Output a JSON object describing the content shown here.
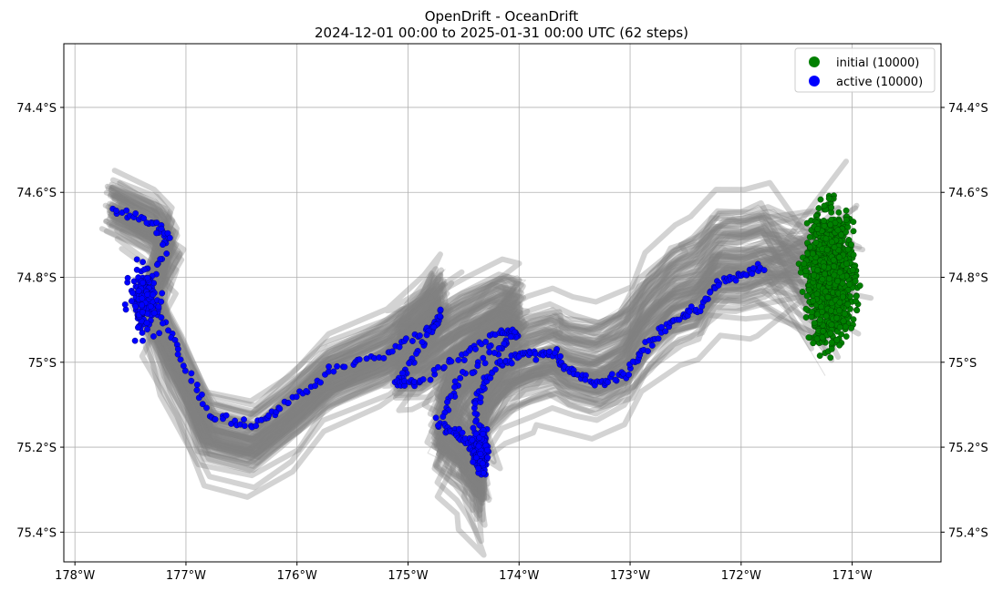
{
  "chart_data": {
    "type": "scatter",
    "title": "OpenDrift - OceanDrift",
    "subtitle": "2024-12-01 00:00 to 2025-01-31 00:00 UTC (62 steps)",
    "xlabel": "",
    "ylabel": "",
    "x_ticks": [
      {
        "value": -178,
        "label": "178°W"
      },
      {
        "value": -177,
        "label": "177°W"
      },
      {
        "value": -176,
        "label": "176°W"
      },
      {
        "value": -175,
        "label": "175°W"
      },
      {
        "value": -174,
        "label": "174°W"
      },
      {
        "value": -173,
        "label": "173°W"
      },
      {
        "value": -172,
        "label": "172°W"
      },
      {
        "value": -171,
        "label": "171°W"
      }
    ],
    "y_ticks": [
      {
        "value": -74.4,
        "label": "74.4°S"
      },
      {
        "value": -74.6,
        "label": "74.6°S"
      },
      {
        "value": -74.8,
        "label": "74.8°S"
      },
      {
        "value": -75.0,
        "label": "75°S"
      },
      {
        "value": -75.2,
        "label": "75.2°S"
      },
      {
        "value": -75.4,
        "label": "75.4°S"
      }
    ],
    "xlim": [
      -178.1,
      -170.2
    ],
    "ylim": [
      -75.47,
      -74.25
    ],
    "grid": true,
    "legend_position": "top-right",
    "series": [
      {
        "name": "initial (10000)",
        "color": "#008000",
        "center": [
          -171.2,
          -74.8
        ],
        "spread": [
          0.2,
          0.14
        ]
      },
      {
        "name": "active (10000)",
        "color": "#0000ff",
        "path": [
          [
            -177.65,
            -74.64
          ],
          [
            -177.3,
            -74.67
          ],
          [
            -177.15,
            -74.7
          ],
          [
            -177.35,
            -74.83
          ],
          [
            -177.1,
            -74.96
          ],
          [
            -176.8,
            -75.12
          ],
          [
            -176.4,
            -75.15
          ],
          [
            -176.1,
            -75.1
          ],
          [
            -175.7,
            -75.02
          ],
          [
            -175.2,
            -74.98
          ],
          [
            -174.8,
            -74.92
          ],
          [
            -174.7,
            -74.89
          ],
          [
            -174.95,
            -74.99
          ],
          [
            -175.1,
            -75.05
          ],
          [
            -174.9,
            -75.05
          ],
          [
            -174.5,
            -74.98
          ],
          [
            -174.15,
            -74.93
          ],
          [
            -174.0,
            -74.93
          ],
          [
            -174.2,
            -74.97
          ],
          [
            -174.55,
            -75.05
          ],
          [
            -174.72,
            -75.15
          ],
          [
            -174.55,
            -75.17
          ],
          [
            -174.45,
            -75.19
          ],
          [
            -174.35,
            -75.24
          ],
          [
            -174.4,
            -75.1
          ],
          [
            -174.3,
            -75.04
          ],
          [
            -174.1,
            -74.99
          ],
          [
            -173.9,
            -74.98
          ],
          [
            -173.7,
            -74.98
          ],
          [
            -173.55,
            -75.02
          ],
          [
            -173.3,
            -75.05
          ],
          [
            -173.05,
            -75.03
          ],
          [
            -172.85,
            -74.96
          ],
          [
            -172.6,
            -74.9
          ],
          [
            -172.4,
            -74.88
          ],
          [
            -172.2,
            -74.81
          ],
          [
            -172.0,
            -74.8
          ],
          [
            -171.8,
            -74.77
          ]
        ],
        "clusters": [
          {
            "center": [
              -177.38,
              -74.85
            ],
            "spread": [
              0.1,
              0.06
            ]
          },
          {
            "center": [
              -174.35,
              -75.21
            ],
            "spread": [
              0.05,
              0.04
            ]
          }
        ]
      }
    ],
    "trajectories": {
      "color": "#808080",
      "count": 10000
    }
  }
}
